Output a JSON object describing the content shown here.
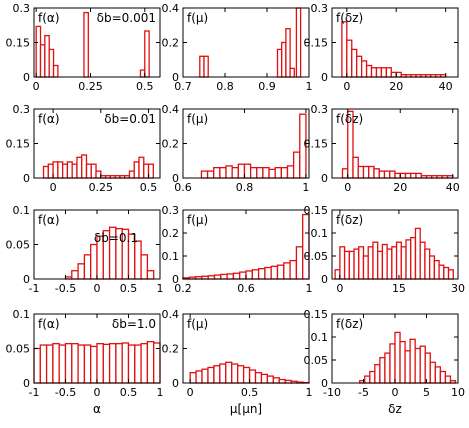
{
  "chart_data": [
    {
      "type": "bar",
      "bin_width": 0.02,
      "x": [
        0.01,
        0.03,
        0.05,
        0.07,
        0.09,
        0.23,
        0.49,
        0.51
      ],
      "values": [
        0.22,
        0.14,
        0.18,
        0.12,
        0.05,
        0.28,
        0.03,
        0.2
      ],
      "xlim": [
        -0.01,
        0.57
      ],
      "ylim": [
        0,
        0.3
      ],
      "xticks": [
        0,
        0.25,
        0.5
      ],
      "xtick_labels": [
        "0",
        "0.25",
        "0.5"
      ],
      "yticks": [
        0,
        0.15,
        0.3
      ],
      "ytick_labels": [
        "0",
        "0.15",
        "0.3"
      ],
      "label": "f(α)",
      "annotation": "δb=0.001",
      "xlabel": ""
    },
    {
      "type": "bar",
      "bin_width": 0.01,
      "x": [
        0.745,
        0.755,
        0.93,
        0.94,
        0.95,
        0.96,
        0.975
      ],
      "values": [
        0.12,
        0.12,
        0.16,
        0.2,
        0.28,
        0.05,
        0.4
      ],
      "xlim": [
        0.7,
        1.0
      ],
      "ylim": [
        0,
        0.4
      ],
      "xticks": [
        0.7,
        0.8,
        0.9,
        1
      ],
      "xtick_labels": [
        "0.7",
        "0.8",
        "0.9",
        "1"
      ],
      "yticks": [
        0,
        0.2,
        0.4
      ],
      "ytick_labels": [
        "0",
        "0.2",
        "0.4"
      ],
      "label": "f(μ)",
      "annotation": "",
      "xlabel": ""
    },
    {
      "type": "bar",
      "bin_width": 2,
      "x": [
        -1,
        1,
        3,
        5,
        7,
        9,
        11,
        13,
        15,
        17,
        19,
        21,
        23,
        25,
        27,
        29,
        31,
        33,
        35,
        37,
        39
      ],
      "values": [
        0.24,
        0.16,
        0.12,
        0.09,
        0.07,
        0.05,
        0.04,
        0.04,
        0.04,
        0.04,
        0.02,
        0.02,
        0.01,
        0.01,
        0.01,
        0.01,
        0.01,
        0.01,
        0.01,
        0.01,
        0.01
      ],
      "xlim": [
        -6,
        45
      ],
      "ylim": [
        0,
        0.3
      ],
      "xticks": [
        0,
        20,
        40
      ],
      "xtick_labels": [
        "0",
        "20",
        "40"
      ],
      "yticks": [
        0,
        0.15,
        0.3
      ],
      "ytick_labels": [
        "0",
        "0.15",
        "0.3"
      ],
      "label": "f(δz)",
      "annotation": "",
      "xlabel": ""
    },
    {
      "type": "bar",
      "bin_width": 0.025,
      "x": [
        -0.0375,
        -0.0125,
        0.0125,
        0.0375,
        0.0625,
        0.0875,
        0.1125,
        0.1375,
        0.1625,
        0.1875,
        0.2125,
        0.2375,
        0.2625,
        0.2875,
        0.3125,
        0.3375,
        0.3625,
        0.3875,
        0.4125,
        0.4375,
        0.4625,
        0.4875,
        0.5125
      ],
      "values": [
        0.05,
        0.06,
        0.07,
        0.07,
        0.06,
        0.07,
        0.06,
        0.09,
        0.1,
        0.06,
        0.06,
        0.03,
        0.01,
        0.01,
        0.01,
        0.01,
        0.01,
        0.01,
        0.03,
        0.07,
        0.09,
        0.06,
        0.06
      ],
      "xlim": [
        -0.1,
        0.56
      ],
      "ylim": [
        0,
        0.3
      ],
      "xticks": [
        0,
        0.25,
        0.5
      ],
      "xtick_labels": [
        "0",
        "0.25",
        "0.5"
      ],
      "yticks": [
        0,
        0.15,
        0.3
      ],
      "ytick_labels": [
        "0",
        "0.15",
        "0.3"
      ],
      "label": "f(α)",
      "annotation": "δb=0.01",
      "xlabel": ""
    },
    {
      "type": "bar",
      "bin_width": 0.02,
      "x": [
        0.67,
        0.69,
        0.71,
        0.73,
        0.75,
        0.77,
        0.79,
        0.81,
        0.83,
        0.85,
        0.87,
        0.89,
        0.91,
        0.93,
        0.95,
        0.97,
        0.99
      ],
      "values": [
        0.04,
        0.04,
        0.06,
        0.06,
        0.07,
        0.06,
        0.08,
        0.08,
        0.06,
        0.06,
        0.06,
        0.05,
        0.06,
        0.06,
        0.07,
        0.15,
        0.37
      ],
      "xlim": [
        0.6,
        1.01
      ],
      "ylim": [
        0,
        0.4
      ],
      "xticks": [
        0.6,
        0.8,
        1
      ],
      "xtick_labels": [
        "0.6",
        "0.8",
        "1"
      ],
      "yticks": [
        0,
        0.2,
        0.4
      ],
      "ytick_labels": [
        "0",
        "0.2",
        "0.4"
      ],
      "label": "f(μ)",
      "annotation": "",
      "xlabel": ""
    },
    {
      "type": "bar",
      "bin_width": 2,
      "x": [
        -1,
        1,
        3,
        5,
        7,
        9,
        11,
        13,
        15,
        17,
        19,
        21,
        23,
        25,
        27,
        29,
        31,
        33,
        35,
        37,
        39
      ],
      "values": [
        0.04,
        0.29,
        0.09,
        0.05,
        0.05,
        0.05,
        0.04,
        0.03,
        0.03,
        0.03,
        0.02,
        0.02,
        0.02,
        0.02,
        0.02,
        0.01,
        0.01,
        0.01,
        0.01,
        0.01,
        0.01
      ],
      "xlim": [
        -6,
        42
      ],
      "ylim": [
        0,
        0.3
      ],
      "xticks": [
        0,
        20,
        40
      ],
      "xtick_labels": [
        "0",
        "20",
        "40"
      ],
      "yticks": [
        0,
        0.15,
        0.3
      ],
      "ytick_labels": [
        "0",
        "0.15",
        "0.3"
      ],
      "label": "f(δz)",
      "annotation": "",
      "xlabel": ""
    },
    {
      "type": "bar",
      "bin_width": 0.1,
      "x": [
        -0.45,
        -0.35,
        -0.25,
        -0.15,
        -0.05,
        0.05,
        0.15,
        0.25,
        0.35,
        0.45,
        0.55,
        0.65,
        0.75,
        0.85
      ],
      "values": [
        0.003,
        0.012,
        0.022,
        0.035,
        0.05,
        0.062,
        0.07,
        0.075,
        0.073,
        0.072,
        0.065,
        0.055,
        0.035,
        0.012
      ],
      "xlim": [
        -1,
        1
      ],
      "ylim": [
        0,
        0.1
      ],
      "xticks": [
        -1,
        -0.5,
        0,
        0.5,
        1
      ],
      "xtick_labels": [
        "-1",
        "-0.5",
        "0",
        "0.5",
        "1"
      ],
      "yticks": [
        0,
        0.05,
        0.1
      ],
      "ytick_labels": [
        "0",
        "0.05",
        "0.1"
      ],
      "label": "f(α)",
      "annotation": "δb=0.1",
      "xlabel": ""
    },
    {
      "type": "bar",
      "bin_width": 0.04,
      "x": [
        0.22,
        0.26,
        0.3,
        0.34,
        0.38,
        0.42,
        0.46,
        0.5,
        0.54,
        0.58,
        0.62,
        0.66,
        0.7,
        0.74,
        0.78,
        0.82,
        0.86,
        0.9,
        0.94,
        0.98
      ],
      "values": [
        0.005,
        0.008,
        0.01,
        0.012,
        0.014,
        0.017,
        0.02,
        0.022,
        0.025,
        0.03,
        0.035,
        0.04,
        0.045,
        0.05,
        0.055,
        0.06,
        0.07,
        0.08,
        0.14,
        0.28
      ],
      "xlim": [
        0.2,
        1.0
      ],
      "ylim": [
        0,
        0.3
      ],
      "xticks": [
        0.2,
        0.6,
        1
      ],
      "xtick_labels": [
        "0.2",
        "0.6",
        "1"
      ],
      "yticks": [
        0,
        0.1,
        0.2,
        0.3
      ],
      "ytick_labels": [
        "0",
        "0.1",
        "0.2",
        "0.3"
      ],
      "label": "f(μ)",
      "annotation": "",
      "xlabel": ""
    },
    {
      "type": "bar",
      "bin_width": 1.2,
      "x": [
        -0.6,
        0.6,
        1.8,
        3,
        4.2,
        5.4,
        6.6,
        7.8,
        9,
        10.2,
        11.4,
        12.6,
        13.8,
        15,
        16.2,
        17.4,
        18.6,
        19.8,
        21,
        22.2,
        23.4,
        24.6,
        25.8,
        27,
        28.2
      ],
      "values": [
        0.02,
        0.07,
        0.06,
        0.06,
        0.065,
        0.07,
        0.05,
        0.07,
        0.08,
        0.06,
        0.075,
        0.065,
        0.07,
        0.08,
        0.07,
        0.085,
        0.09,
        0.11,
        0.08,
        0.065,
        0.05,
        0.04,
        0.03,
        0.025,
        0.02
      ],
      "xlim": [
        -2,
        30
      ],
      "ylim": [
        0,
        0.15
      ],
      "xticks": [
        0,
        15,
        30
      ],
      "xtick_labels": [
        "0",
        "15",
        "30"
      ],
      "yticks": [
        0,
        0.05,
        0.1,
        0.15
      ],
      "ytick_labels": [
        "0",
        "0.05",
        "0.1",
        "0.15"
      ],
      "label": "f(δz)",
      "annotation": "",
      "xlabel": ""
    },
    {
      "type": "bar",
      "bin_width": 0.1,
      "x": [
        -0.95,
        -0.85,
        -0.75,
        -0.65,
        -0.55,
        -0.45,
        -0.35,
        -0.25,
        -0.15,
        -0.05,
        0.05,
        0.15,
        0.25,
        0.35,
        0.45,
        0.55,
        0.65,
        0.75,
        0.85,
        0.95
      ],
      "values": [
        0.05,
        0.055,
        0.055,
        0.057,
        0.055,
        0.057,
        0.057,
        0.055,
        0.055,
        0.053,
        0.057,
        0.056,
        0.057,
        0.057,
        0.058,
        0.055,
        0.055,
        0.057,
        0.06,
        0.058
      ],
      "xlim": [
        -1,
        1
      ],
      "ylim": [
        0,
        0.1
      ],
      "xticks": [
        -1,
        -0.5,
        0,
        0.5,
        1
      ],
      "xtick_labels": [
        "-1",
        "-0.5",
        "0",
        "0.5",
        "1"
      ],
      "yticks": [
        0,
        0.05,
        0.1
      ],
      "ytick_labels": [
        "0",
        "0.05",
        "0.1"
      ],
      "label": "f(α)",
      "annotation": "δb=1.0",
      "xlabel": "α"
    },
    {
      "type": "bar",
      "bin_width": 0.05,
      "x": [
        0.025,
        0.075,
        0.125,
        0.175,
        0.225,
        0.275,
        0.325,
        0.375,
        0.425,
        0.475,
        0.525,
        0.575,
        0.625,
        0.675,
        0.725,
        0.775,
        0.825,
        0.875,
        0.925,
        0.975
      ],
      "values": [
        0.06,
        0.07,
        0.08,
        0.09,
        0.1,
        0.11,
        0.12,
        0.11,
        0.1,
        0.09,
        0.075,
        0.06,
        0.05,
        0.04,
        0.03,
        0.02,
        0.015,
        0.01,
        0.005,
        0.002
      ],
      "xlim": [
        -0.06,
        1.0
      ],
      "ylim": [
        0,
        0.4
      ],
      "xticks": [
        0,
        0.5,
        1
      ],
      "xtick_labels": [
        "0",
        "0.5",
        "1"
      ],
      "yticks": [
        0,
        0.2,
        0.4
      ],
      "ytick_labels": [
        "0",
        "0.2",
        "0.4"
      ],
      "label": "f(μ)",
      "annotation": "",
      "xlabel": "μ[μn]"
    },
    {
      "type": "bar",
      "bin_width": 0.8,
      "x": [
        -5.2,
        -4.4,
        -3.6,
        -2.8,
        -2,
        -1.2,
        -0.4,
        0.4,
        1.2,
        2,
        2.8,
        3.6,
        4.4,
        5.2,
        6,
        6.8,
        7.6,
        8.4,
        9.2
      ],
      "values": [
        0.005,
        0.015,
        0.025,
        0.04,
        0.055,
        0.065,
        0.085,
        0.11,
        0.09,
        0.07,
        0.095,
        0.075,
        0.08,
        0.065,
        0.045,
        0.035,
        0.025,
        0.015,
        0.005
      ],
      "xlim": [
        -10,
        10
      ],
      "ylim": [
        0,
        0.15
      ],
      "xticks": [
        -10,
        -5,
        0,
        5,
        10
      ],
      "xtick_labels": [
        "-10",
        "-5",
        "0",
        "5",
        "10"
      ],
      "yticks": [
        0,
        0.05,
        0.1,
        0.15
      ],
      "ytick_labels": [
        "0",
        "0.05",
        "0.1",
        "0.15"
      ],
      "label": "f(δz)",
      "annotation": "",
      "xlabel": "δz"
    }
  ]
}
